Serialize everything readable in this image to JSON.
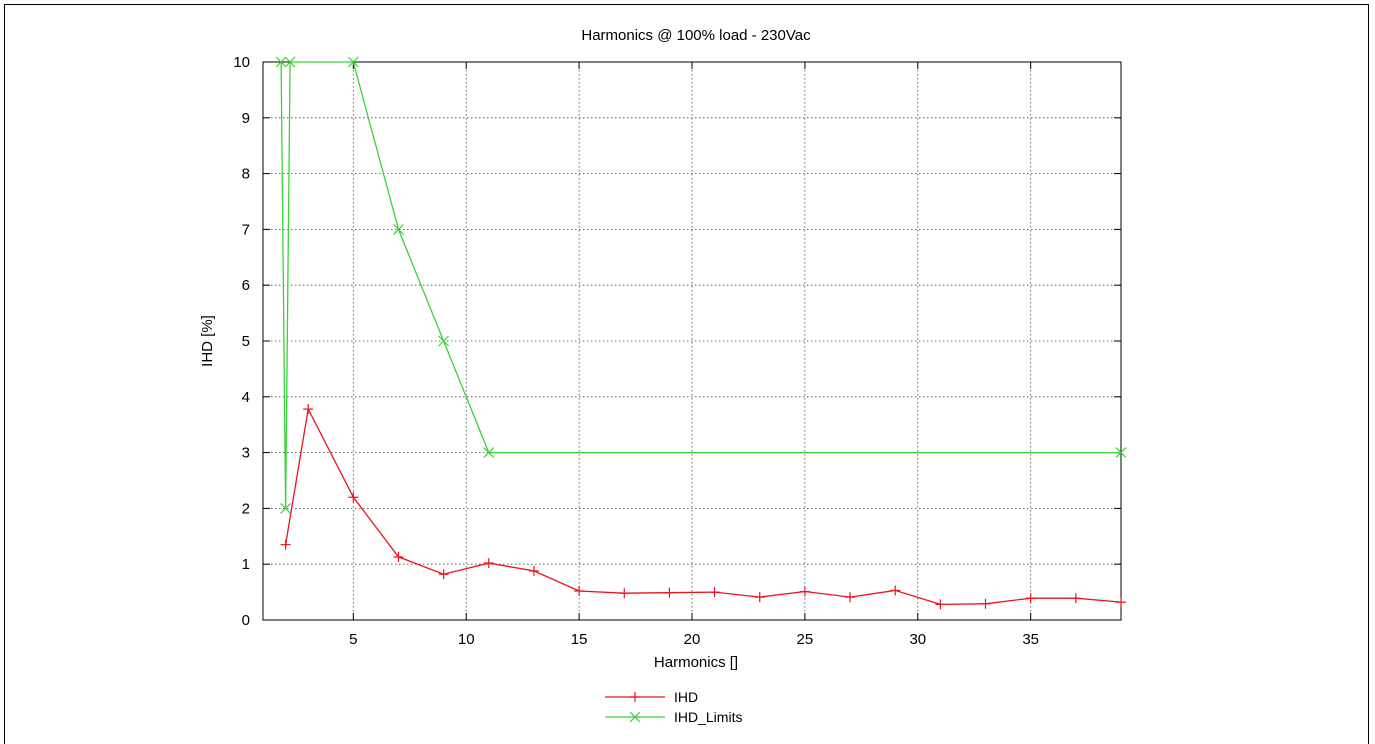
{
  "chart_data": {
    "type": "line",
    "title": "Harmonics @ 100% load - 230Vac",
    "xlabel": "Harmonics []",
    "ylabel": "IHD [%]",
    "xlim": [
      1,
      39
    ],
    "ylim": [
      0,
      10
    ],
    "xticks": [
      5,
      10,
      15,
      20,
      25,
      30,
      35
    ],
    "yticks": [
      0,
      1,
      2,
      3,
      4,
      5,
      6,
      7,
      8,
      9,
      10
    ],
    "grid": true,
    "legend_position": "bottom-center",
    "series": [
      {
        "name": "IHD",
        "color": "#e8141e",
        "marker": "plus",
        "x": [
          2,
          3,
          5,
          7,
          9,
          11,
          13,
          15,
          17,
          19,
          21,
          23,
          25,
          27,
          29,
          31,
          33,
          35,
          37,
          39
        ],
        "y": [
          1.35,
          3.78,
          2.2,
          1.13,
          0.82,
          1.02,
          0.88,
          0.52,
          0.48,
          0.49,
          0.5,
          0.41,
          0.51,
          0.41,
          0.53,
          0.28,
          0.29,
          0.39,
          0.39,
          0.32
        ]
      },
      {
        "name": "IHD_Limits",
        "color": "#38d338",
        "marker": "cross",
        "x": [
          1.8,
          2,
          2.2,
          5,
          7,
          9,
          11,
          39
        ],
        "y": [
          10,
          2,
          10,
          10,
          7,
          5,
          3,
          3
        ]
      }
    ]
  }
}
